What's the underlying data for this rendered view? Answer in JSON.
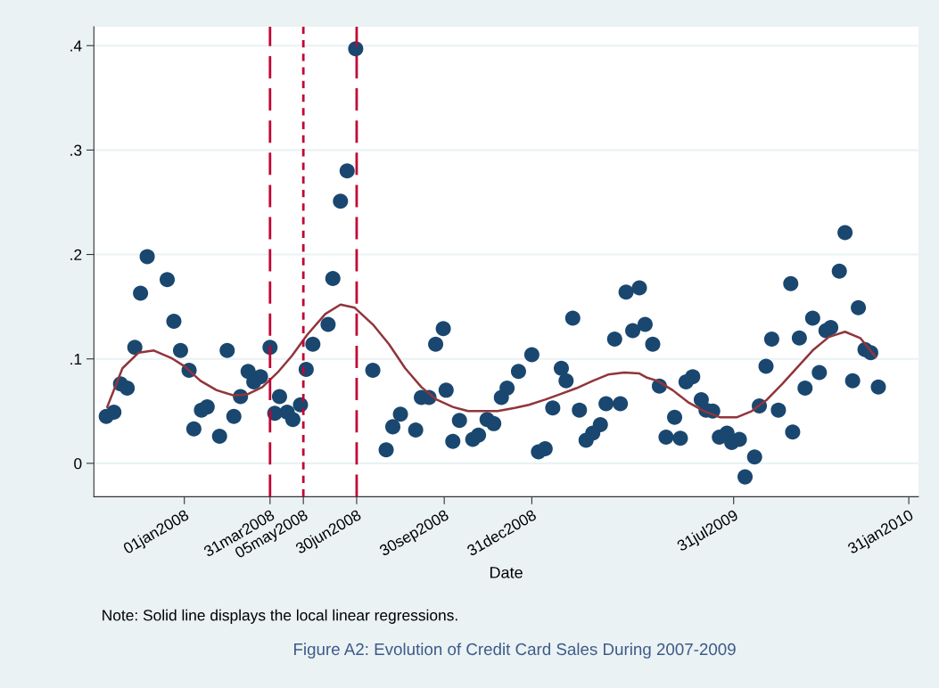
{
  "chart_data": {
    "type": "scatter",
    "title": "Figure A2: Evolution of Credit Card Sales During 2007-2009",
    "xlabel": "Date",
    "annotations": [
      "Note: Solid line displays the local linear regressions."
    ],
    "grid": "y",
    "legend": false,
    "marker": "circle",
    "xlim": [
      "2007-09-28",
      "2010-02-10"
    ],
    "xticks": [
      {
        "value": "2008-01-01",
        "label": "01jan2008"
      },
      {
        "value": "2008-03-31",
        "label": "31mar2008"
      },
      {
        "value": "2008-05-05",
        "label": "05may2008"
      },
      {
        "value": "2008-06-30",
        "label": "30jun2008"
      },
      {
        "value": "2008-09-30",
        "label": "30sep2008"
      },
      {
        "value": "2008-12-31",
        "label": "31dec2008"
      },
      {
        "value": "2009-07-31",
        "label": "31jul2009"
      },
      {
        "value": "2010-01-31",
        "label": "31jan2010"
      }
    ],
    "ylim": [
      -0.032,
      0.418
    ],
    "yticks": [
      {
        "value": 0,
        "label": "0"
      },
      {
        "value": 0.1,
        "label": ".1"
      },
      {
        "value": 0.2,
        "label": ".2"
      },
      {
        "value": 0.3,
        "label": ".3"
      },
      {
        "value": 0.4,
        "label": ".4"
      }
    ],
    "ref_lines": [
      {
        "axis": "x",
        "value": "2008-03-31",
        "label": null,
        "color": "#c10534",
        "line_style": "dashed"
      },
      {
        "axis": "x",
        "value": "2008-05-05",
        "label": null,
        "color": "#c10534",
        "line_style": "dotted"
      },
      {
        "axis": "x",
        "value": "2008-06-30",
        "label": null,
        "color": "#c10534",
        "line_style": "dashed"
      }
    ],
    "series": [
      {
        "color": "#1a476f",
        "x": [
          "2007-10-11",
          "2007-10-19",
          "2007-10-26",
          "2007-11-02",
          "2007-11-10",
          "2007-11-16",
          "2007-11-23",
          "2007-12-14",
          "2007-12-21",
          "2007-12-28",
          "2008-01-06",
          "2008-01-11",
          "2008-01-19",
          "2008-01-25",
          "2008-02-07",
          "2008-02-15",
          "2008-02-22",
          "2008-02-29",
          "2008-03-08",
          "2008-03-14",
          "2008-03-21",
          "2008-03-31",
          "2008-04-05",
          "2008-04-10",
          "2008-04-18",
          "2008-04-24",
          "2008-05-02",
          "2008-05-08",
          "2008-05-15",
          "2008-05-31",
          "2008-06-05",
          "2008-06-13",
          "2008-06-20",
          "2008-06-29",
          "2008-07-17",
          "2008-07-31",
          "2008-08-07",
          "2008-08-15",
          "2008-08-31",
          "2008-09-06",
          "2008-09-14",
          "2008-09-21",
          "2008-09-29",
          "2008-10-02",
          "2008-10-09",
          "2008-10-16",
          "2008-10-30",
          "2008-11-05",
          "2008-11-14",
          "2008-11-21",
          "2008-11-29",
          "2008-12-05",
          "2008-12-17",
          "2008-12-31",
          "2009-01-07",
          "2009-01-14",
          "2009-01-22",
          "2009-01-31",
          "2009-02-05",
          "2009-02-12",
          "2009-02-19",
          "2009-02-26",
          "2009-03-05",
          "2009-03-13",
          "2009-03-19",
          "2009-03-28",
          "2009-04-03",
          "2009-04-09",
          "2009-04-16",
          "2009-04-23",
          "2009-04-29",
          "2009-05-07",
          "2009-05-14",
          "2009-05-21",
          "2009-05-30",
          "2009-06-05",
          "2009-06-11",
          "2009-06-18",
          "2009-06-27",
          "2009-07-02",
          "2009-07-09",
          "2009-07-16",
          "2009-07-24",
          "2009-07-29",
          "2009-08-06",
          "2009-08-12",
          "2009-08-22",
          "2009-08-27",
          "2009-09-03",
          "2009-09-09",
          "2009-09-16",
          "2009-09-29",
          "2009-10-01",
          "2009-10-08",
          "2009-10-14",
          "2009-10-22",
          "2009-10-29",
          "2009-11-05",
          "2009-11-10",
          "2009-11-19",
          "2009-11-25",
          "2009-12-03",
          "2009-12-09",
          "2009-12-16",
          "2009-12-22",
          "2009-12-30"
        ],
        "values": [
          0.045,
          0.049,
          0.076,
          0.072,
          0.111,
          0.163,
          0.198,
          0.176,
          0.136,
          0.108,
          0.089,
          0.033,
          0.051,
          0.054,
          0.026,
          0.108,
          0.045,
          0.064,
          0.088,
          0.078,
          0.083,
          0.111,
          0.048,
          0.064,
          0.049,
          0.042,
          0.056,
          0.09,
          0.114,
          0.133,
          0.177,
          0.251,
          0.28,
          0.397,
          0.089,
          0.013,
          0.035,
          0.047,
          0.032,
          0.063,
          0.063,
          0.114,
          0.129,
          0.07,
          0.021,
          0.041,
          0.023,
          0.027,
          0.042,
          0.038,
          0.063,
          0.072,
          0.088,
          0.104,
          0.011,
          0.014,
          0.053,
          0.091,
          0.079,
          0.139,
          0.051,
          0.022,
          0.029,
          0.037,
          0.057,
          0.119,
          0.057,
          0.164,
          0.127,
          0.168,
          0.133,
          0.114,
          0.074,
          0.025,
          0.044,
          0.024,
          0.078,
          0.083,
          0.061,
          0.051,
          0.05,
          0.025,
          0.029,
          0.02,
          0.023,
          -0.013,
          0.006,
          0.055,
          0.093,
          0.119,
          0.051,
          0.172,
          0.03,
          0.12,
          0.072,
          0.139,
          0.087,
          0.127,
          0.13,
          0.184,
          0.221,
          0.079,
          0.149,
          0.109,
          0.106,
          0.073
        ]
      },
      {
        "type": "line",
        "color": "#90353b",
        "line_style": "solid",
        "marker": "none",
        "x": [
          "2007-10-12",
          "2007-10-28",
          "2007-11-14",
          "2007-11-30",
          "2007-12-18",
          "2008-01-01",
          "2008-01-18",
          "2008-02-04",
          "2008-02-22",
          "2008-03-07",
          "2008-03-23",
          "2008-04-08",
          "2008-04-23",
          "2008-05-09",
          "2008-05-28",
          "2008-06-13",
          "2008-06-28",
          "2008-07-17",
          "2008-08-03",
          "2008-08-20",
          "2008-09-06",
          "2008-09-22",
          "2008-10-09",
          "2008-10-25",
          "2008-11-10",
          "2008-11-25",
          "2008-12-13",
          "2008-12-28",
          "2009-01-14",
          "2009-01-29",
          "2009-02-16",
          "2009-03-05",
          "2009-03-21",
          "2009-04-07",
          "2009-04-23",
          "2009-05-01",
          "2009-05-12",
          "2009-05-28",
          "2009-06-14",
          "2009-06-30",
          "2009-07-17",
          "2009-08-03",
          "2009-08-19",
          "2009-09-04",
          "2009-09-20",
          "2009-10-07",
          "2009-10-23",
          "2009-11-08",
          "2009-11-25",
          "2009-12-11",
          "2009-12-27"
        ],
        "values": [
          0.054,
          0.091,
          0.106,
          0.108,
          0.101,
          0.093,
          0.079,
          0.07,
          0.065,
          0.066,
          0.073,
          0.087,
          0.103,
          0.123,
          0.143,
          0.152,
          0.149,
          0.133,
          0.114,
          0.091,
          0.073,
          0.061,
          0.054,
          0.05,
          0.05,
          0.05,
          0.053,
          0.056,
          0.061,
          0.066,
          0.072,
          0.079,
          0.085,
          0.087,
          0.086,
          0.082,
          0.079,
          0.07,
          0.058,
          0.05,
          0.044,
          0.044,
          0.05,
          0.061,
          0.076,
          0.093,
          0.109,
          0.121,
          0.126,
          0.12,
          0.102
        ]
      }
    ]
  }
}
